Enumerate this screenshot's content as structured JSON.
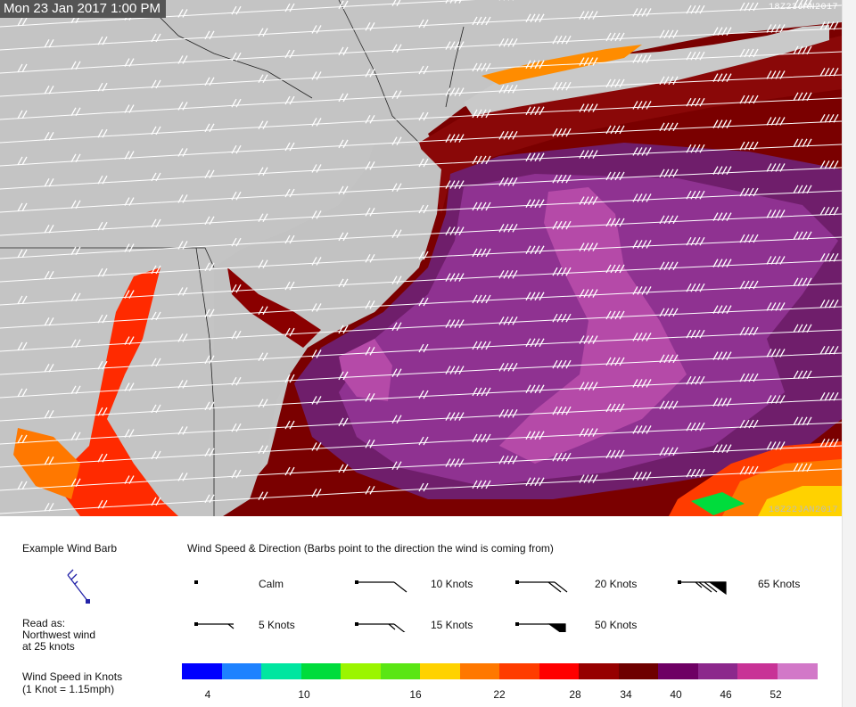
{
  "map": {
    "timestamp": "Mon 23 Jan 2017 1:00 PM",
    "run_code_top": "18Z23JAN2017",
    "run_code_bottom": "18Z22JAN2017"
  },
  "legend": {
    "example_title": "Example Wind Barb",
    "read_as_line1": "Read as:",
    "read_as_line2": "Northwest wind",
    "read_as_line3": "at 25 knots",
    "scale_title_line1": "Wind Speed in Knots",
    "scale_title_line2": "(1 Knot = 1.15mph)",
    "heading": "Wind Speed & Direction (Barbs point to the direction the wind is coming from)",
    "barb_items": [
      {
        "label": "Calm"
      },
      {
        "label": "10 Knots"
      },
      {
        "label": "20 Knots"
      },
      {
        "label": "65 Knots"
      },
      {
        "label": "5 Knots"
      },
      {
        "label": "15 Knots"
      },
      {
        "label": "50 Knots"
      }
    ],
    "color_scale": [
      "#0000ff",
      "#1e82ff",
      "#00e6a0",
      "#00dc3c",
      "#9bf500",
      "#5ae614",
      "#ffd200",
      "#ff7800",
      "#ff3c00",
      "#ff0000",
      "#960000",
      "#6e0000",
      "#6e0064",
      "#8c288c",
      "#c83296",
      "#d278c8"
    ],
    "scale_ticks": [
      "4",
      "10",
      "16",
      "22",
      "28",
      "34",
      "40",
      "46",
      "52"
    ]
  }
}
